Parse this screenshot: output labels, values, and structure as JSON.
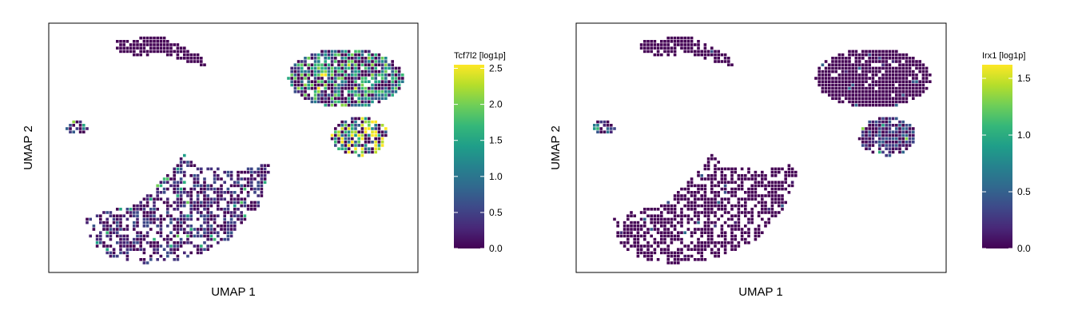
{
  "chart_data": [
    {
      "type": "heatmap",
      "subtype": "umap-hexbin",
      "xlabel": "UMAP 1",
      "ylabel": "UMAP 2",
      "colorbar": {
        "label": "Tcf7l2 [log1p]",
        "range": [
          0.0,
          2.55
        ],
        "ticks": [
          0.0,
          0.5,
          1.0,
          1.5,
          2.0,
          2.5
        ],
        "tick_labels": [
          "0.0",
          "0.5",
          "1.0",
          "1.5",
          "2.0",
          "2.5"
        ],
        "colormap": "viridis"
      },
      "grid": false,
      "axes_ticks": false,
      "clusters": [
        {
          "region": "top-left strip",
          "approx_mean_expression": 0.0
        },
        {
          "region": "small-left islet",
          "approx_mean_expression": 0.9
        },
        {
          "region": "large-bottom-left",
          "approx_mean_expression": 0.4
        },
        {
          "region": "upper-right",
          "approx_mean_expression": 1.2
        },
        {
          "region": "lower-right",
          "approx_mean_expression": 1.8
        }
      ]
    },
    {
      "type": "heatmap",
      "subtype": "umap-hexbin",
      "xlabel": "UMAP 1",
      "ylabel": "UMAP 2",
      "colorbar": {
        "label": "Irx1 [log1p]",
        "range": [
          0.0,
          1.62
        ],
        "ticks": [
          0.0,
          0.5,
          1.0,
          1.5
        ],
        "tick_labels": [
          "0.0",
          "0.5",
          "1.0",
          "1.5"
        ],
        "colormap": "viridis"
      },
      "grid": false,
      "axes_ticks": false,
      "clusters": [
        {
          "region": "top-left strip",
          "approx_mean_expression": 0.0
        },
        {
          "region": "small-left islet",
          "approx_mean_expression": 0.5
        },
        {
          "region": "large-bottom-left",
          "approx_mean_expression": 0.0
        },
        {
          "region": "upper-right",
          "approx_mean_expression": 0.0
        },
        {
          "region": "lower-right",
          "approx_mean_expression": 0.3
        }
      ]
    }
  ],
  "palette": {
    "viridis": [
      "#440154",
      "#482878",
      "#3e4989",
      "#31688e",
      "#26828e",
      "#1f9e89",
      "#35b779",
      "#6ece58",
      "#b5de2b",
      "#fde725"
    ],
    "frame": "#000000",
    "background": "#ffffff"
  }
}
